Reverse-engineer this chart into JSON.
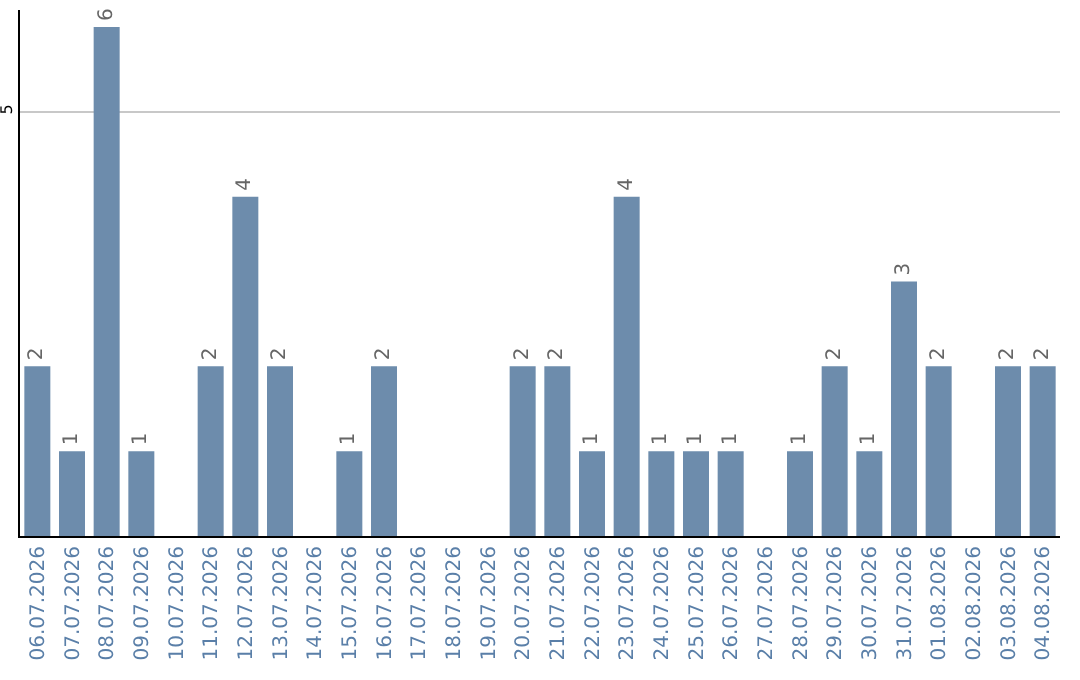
{
  "chart_data": {
    "type": "bar",
    "categories": [
      "06.07.2026",
      "07.07.2026",
      "08.07.2026",
      "09.07.2026",
      "10.07.2026",
      "11.07.2026",
      "12.07.2026",
      "13.07.2026",
      "14.07.2026",
      "15.07.2026",
      "16.07.2026",
      "17.07.2026",
      "18.07.2026",
      "19.07.2026",
      "20.07.2026",
      "21.07.2026",
      "22.07.2026",
      "23.07.2026",
      "24.07.2026",
      "25.07.2026",
      "26.07.2026",
      "27.07.2026",
      "28.07.2026",
      "29.07.2026",
      "30.07.2026",
      "31.07.2026",
      "01.08.2026",
      "02.08.2026",
      "03.08.2026",
      "04.08.2026"
    ],
    "values": [
      2,
      1,
      6,
      1,
      0,
      2,
      4,
      2,
      0,
      1,
      2,
      0,
      0,
      0,
      2,
      2,
      1,
      4,
      1,
      1,
      1,
      0,
      1,
      2,
      1,
      3,
      2,
      0,
      2,
      2
    ],
    "value_labels": [
      "2",
      "1",
      "6",
      "1",
      null,
      "2",
      "4",
      "2",
      null,
      "1",
      "2",
      null,
      null,
      null,
      "2",
      "2",
      "1",
      "4",
      "1",
      "1",
      "1",
      null,
      "1",
      "2",
      "1",
      "3",
      "2",
      null,
      "2",
      "2"
    ],
    "color": "#6d8cac",
    "ylim": [
      0,
      6.2
    ],
    "yticks": [
      5
    ],
    "grid": "y"
  }
}
